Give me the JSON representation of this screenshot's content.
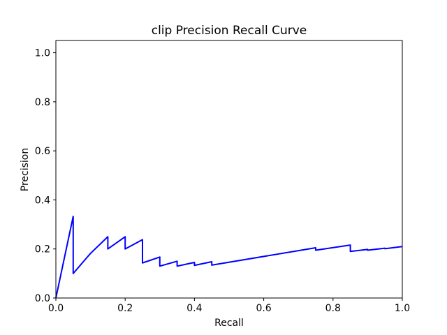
{
  "chart_data": {
    "type": "line",
    "title": "clip Precision Recall Curve",
    "xlabel": "Recall",
    "ylabel": "Precision",
    "xlim": [
      0.0,
      1.0
    ],
    "ylim": [
      0.0,
      1.05
    ],
    "xticks": [
      0.0,
      0.2,
      0.4,
      0.6,
      0.8,
      1.0
    ],
    "xtick_labels": [
      "0.0",
      "0.2",
      "0.4",
      "0.6",
      "0.8",
      "1.0"
    ],
    "yticks": [
      0.0,
      0.2,
      0.4,
      0.6,
      0.8,
      1.0
    ],
    "ytick_labels": [
      "0.0",
      "0.2",
      "0.4",
      "0.6",
      "0.8",
      "1.0"
    ],
    "grid": false,
    "series": [
      {
        "color": "#0000ff",
        "x": [
          0.0,
          0.05,
          0.05,
          0.1,
          0.15,
          0.15,
          0.2,
          0.2,
          0.25,
          0.25,
          0.3,
          0.3,
          0.35,
          0.35,
          0.4,
          0.4,
          0.45,
          0.45,
          0.75,
          0.75,
          0.85,
          0.85,
          0.9,
          0.9,
          0.95,
          0.95,
          1.0
        ],
        "y": [
          0.0,
          0.333,
          0.1,
          0.182,
          0.25,
          0.2,
          0.25,
          0.2,
          0.238,
          0.143,
          0.167,
          0.13,
          0.15,
          0.13,
          0.145,
          0.133,
          0.148,
          0.134,
          0.205,
          0.195,
          0.216,
          0.19,
          0.198,
          0.195,
          0.203,
          0.201,
          0.21
        ]
      }
    ]
  }
}
